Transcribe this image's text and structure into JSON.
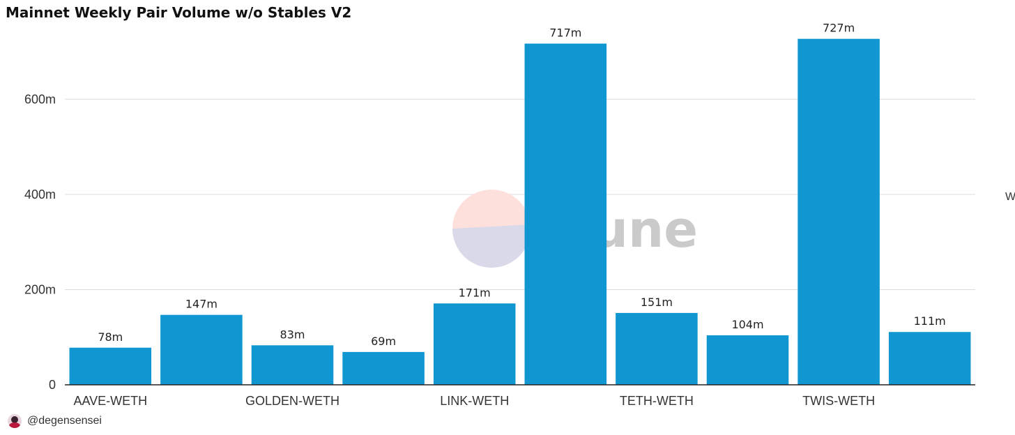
{
  "title": "Mainnet Weekly Pair Volume w/o Stables V2",
  "watermark": {
    "text": "Dune"
  },
  "edge_label": "W",
  "footer": {
    "handle": "@degensensei",
    "avatar_icon": "avatar-icon"
  },
  "colors": {
    "bar": "#1096d0",
    "grid": "#dcdcdc",
    "axis": "#222222"
  },
  "chart_data": {
    "type": "bar",
    "categories": [
      "AAVE-WETH",
      "",
      "GOLDEN-WETH",
      "",
      "LINK-WETH",
      "",
      "TETH-WETH",
      "",
      "TWIS-WETH",
      ""
    ],
    "values": [
      78,
      147,
      83,
      69,
      171,
      717,
      151,
      104,
      727,
      111
    ],
    "data_labels": [
      "78m",
      "147m",
      "83m",
      "69m",
      "171m",
      "717m",
      "151m",
      "104m",
      "727m",
      "111m"
    ],
    "yticks": [
      0,
      200,
      400,
      600
    ],
    "ytick_labels": [
      "0",
      "200m",
      "400m",
      "600m"
    ],
    "ylim": [
      0,
      750
    ],
    "grid": true
  }
}
